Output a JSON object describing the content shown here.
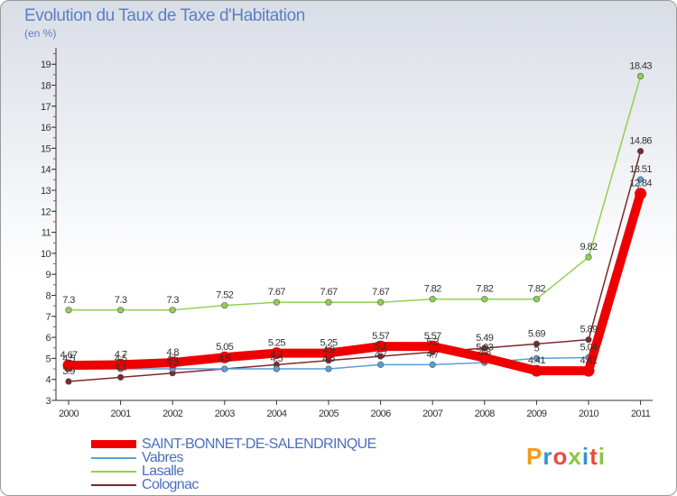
{
  "chart": {
    "title": "Evolution du Taux de Taxe d'Habitation",
    "subtitle": "(en %)"
  },
  "chart_data": {
    "type": "line",
    "title": "Evolution du Taux de Taxe d'Habitation",
    "subtitle": "(en %)",
    "xlabel": "",
    "ylabel": "",
    "x": [
      "2000",
      "2001",
      "2002",
      "2003",
      "2004",
      "2005",
      "2006",
      "2007",
      "2008",
      "2009",
      "2010",
      "2011"
    ],
    "yticks": [
      3,
      4,
      5,
      6,
      7,
      8,
      9,
      10,
      11,
      12,
      13,
      14,
      15,
      16,
      17,
      18,
      19
    ],
    "ylim": [
      3,
      19.5
    ],
    "grid": false,
    "legend_position": "bottom-left",
    "series": [
      {
        "name": "SAINT-BONNET-DE-SALENDRINQUE",
        "color": "#ee0000",
        "values": [
          4.67,
          4.7,
          4.8,
          5.05,
          5.25,
          5.25,
          5.57,
          5.57,
          5.03,
          4.41,
          4.41,
          12.84
        ],
        "labels": [
          "4.67",
          "4.7",
          "4.8",
          "5.05",
          "5.25",
          "5.25",
          "5.57",
          "5.57",
          "5.03",
          "4.41",
          "4.41",
          "12.84"
        ]
      },
      {
        "name": "Vabres",
        "color": "#5a9fd4",
        "values": [
          4.5,
          4.5,
          4.5,
          4.5,
          4.5,
          4.5,
          4.7,
          4.7,
          4.8,
          5.0,
          5.04,
          13.51
        ],
        "labels": [
          "4.5",
          "4.5",
          "4.5",
          "4.5",
          "4.5",
          "4.5",
          "4.7",
          "4.7",
          "4.8",
          "5",
          "5.04",
          "13.51"
        ]
      },
      {
        "name": "Lasalle",
        "color": "#8fd14f",
        "values": [
          7.3,
          7.3,
          7.3,
          7.52,
          7.67,
          7.67,
          7.67,
          7.82,
          7.82,
          7.82,
          9.82,
          18.43
        ],
        "labels": [
          "7.3",
          "7.3",
          "7.3",
          "7.52",
          "7.67",
          "7.67",
          "7.67",
          "7.82",
          "7.82",
          "7.82",
          "9.82",
          "18.43"
        ]
      },
      {
        "name": "Colognac",
        "color": "#7a2a2a",
        "values": [
          3.9,
          4.1,
          4.3,
          4.5,
          4.7,
          4.9,
          5.1,
          5.3,
          5.49,
          5.69,
          5.89,
          14.86
        ],
        "labels": [
          "3.9",
          "4.1",
          "4.3",
          "4.5",
          "4.7",
          "4.9",
          "5.1",
          "5.3",
          "5.49",
          "5.69",
          "5.89",
          "14.86"
        ]
      }
    ]
  },
  "legend": {
    "items": [
      {
        "label": "SAINT-BONNET-DE-SALENDRINQUE"
      },
      {
        "label": "Vabres"
      },
      {
        "label": "Lasalle"
      },
      {
        "label": "Colognac"
      }
    ]
  },
  "logo": {
    "text": "Proxiti",
    "colors": [
      "#f39c12",
      "#3a8fd6",
      "#e74c3c",
      "#8cc63f",
      "#3a8fd6",
      "#e74c3c",
      "#8cc63f"
    ]
  }
}
